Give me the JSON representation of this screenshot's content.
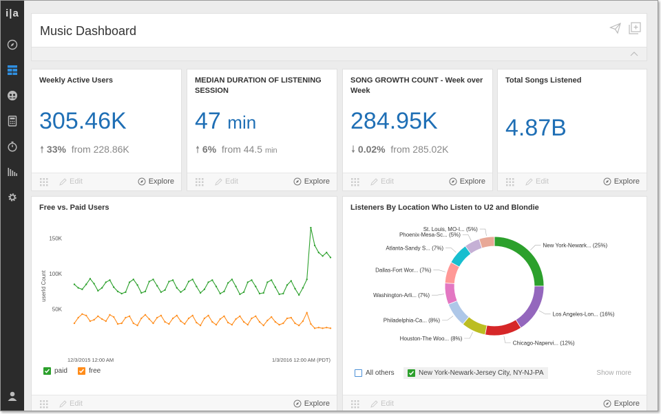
{
  "app": {
    "logo": "i|a",
    "sidebar_icons": [
      "compass-icon",
      "dashboard-grid-icon",
      "users-group-icon",
      "calculator-icon",
      "stopwatch-icon",
      "bars-chart-icon",
      "gear-icon",
      "user-icon"
    ]
  },
  "header": {
    "title": "Music Dashboard"
  },
  "kpis": [
    {
      "title": "Weekly Active Users",
      "value": "305.46K",
      "unit": "",
      "direction": "up",
      "change": "33%",
      "from_label": "from 228.86K",
      "from_unit": ""
    },
    {
      "title": "MEDIAN DURATION OF LISTENING SESSION",
      "value": "47",
      "unit": "min",
      "direction": "up",
      "change": "6%",
      "from_label": "from 44.5",
      "from_unit": "min"
    },
    {
      "title": "SONG GROWTH COUNT - Week over Week",
      "value": "284.95K",
      "unit": "",
      "direction": "down",
      "change": "0.02%",
      "from_label": "from 285.02K",
      "from_unit": ""
    },
    {
      "title": "Total Songs Listened",
      "value": "4.87B",
      "unit": "",
      "direction": "",
      "change": "",
      "from_label": "",
      "from_unit": ""
    }
  ],
  "footer": {
    "edit_label": "Edit",
    "explore_label": "Explore"
  },
  "line_card": {
    "title": "Free vs. Paid Users",
    "x_start_label": "12/3/2015 12:00 AM",
    "x_end_label": "1/3/2016 12:00 AM (PDT)",
    "legend": [
      "paid",
      "free"
    ]
  },
  "donut_card": {
    "title": "Listeners By Location Who Listen to U2 and Blondie",
    "legend_all_others": "All others",
    "legend_selected": "New York-Newark-Jersey City, NY-NJ-PA",
    "show_more": "Show more"
  },
  "colors": {
    "accent": "#1f6fb5",
    "paid": "#2ca02c",
    "free": "#ff8c1a"
  },
  "chart_data": [
    {
      "type": "line",
      "title": "Free vs. Paid Users",
      "ylabel": "userId Count",
      "ylim": [
        0,
        170000
      ],
      "y_ticks": [
        50000,
        100000,
        150000
      ],
      "y_tick_labels": [
        "50K",
        "100K",
        "150K"
      ],
      "x_range": [
        "2015-12-03",
        "2016-01-03"
      ],
      "grid": false,
      "legend_position": "bottom-left",
      "series": [
        {
          "name": "paid",
          "color": "#2ca02c",
          "values": [
            85000,
            80000,
            78000,
            85000,
            93000,
            86000,
            76000,
            80000,
            88000,
            91000,
            81000,
            75000,
            72000,
            74000,
            88000,
            92000,
            84000,
            73000,
            75000,
            89000,
            92000,
            83000,
            74000,
            77000,
            89000,
            91000,
            80000,
            74000,
            78000,
            89000,
            92000,
            82000,
            73000,
            78000,
            88000,
            91000,
            82000,
            72000,
            75000,
            87000,
            92000,
            82000,
            71000,
            74000,
            88000,
            91000,
            82000,
            72000,
            73000,
            88000,
            91000,
            81000,
            71000,
            72000,
            84000,
            90000,
            79000,
            70000,
            80000,
            92000,
            165000,
            140000,
            130000,
            125000,
            130000,
            123000
          ]
        },
        {
          "name": "free",
          "color": "#ff8c1a",
          "values": [
            30000,
            38000,
            43000,
            41000,
            33000,
            35000,
            40000,
            36000,
            33000,
            42000,
            39000,
            29000,
            30000,
            38000,
            40000,
            30000,
            27000,
            37000,
            42000,
            36000,
            30000,
            38000,
            41000,
            32000,
            29000,
            37000,
            41000,
            33000,
            29000,
            37000,
            41000,
            31000,
            27000,
            37000,
            41000,
            32000,
            28000,
            36000,
            40000,
            31000,
            28000,
            36000,
            40000,
            32000,
            28000,
            37000,
            40000,
            32000,
            27000,
            34000,
            39000,
            32000,
            28000,
            30000,
            37000,
            38000,
            30000,
            27000,
            33000,
            45000,
            29000,
            23000,
            24000,
            23000,
            24000,
            23000
          ]
        }
      ]
    },
    {
      "type": "pie",
      "title": "Listeners By Location Who Listen to U2 and Blondie",
      "donut": true,
      "categories": [
        "New York-Newark...",
        "Los Angeles-Lon...",
        "Chicago-Napervi...",
        "Houston-The Woo...",
        "Philadelphia-Ca...",
        "Washington-Arli...",
        "Dallas-Fort Wor...",
        "Atlanta-Sandy S...",
        "Phoenix-Mesa-Sc...",
        "St. Louis, MO-I..."
      ],
      "values": [
        25,
        16,
        12,
        8,
        8,
        7,
        7,
        7,
        5,
        5
      ],
      "value_labels": [
        "(25%)",
        "(16%)",
        "(12%)",
        "(8%)",
        "(8%)",
        "(7%)",
        "(7%)",
        "(7%)",
        "(5%)",
        "(5%)"
      ],
      "colors": [
        "#2ca02c",
        "#9467bd",
        "#d62728",
        "#bcbd22",
        "#aec7e8",
        "#e377c2",
        "#ff9896",
        "#17becf",
        "#c5b0d5",
        "#e8a897"
      ]
    }
  ]
}
